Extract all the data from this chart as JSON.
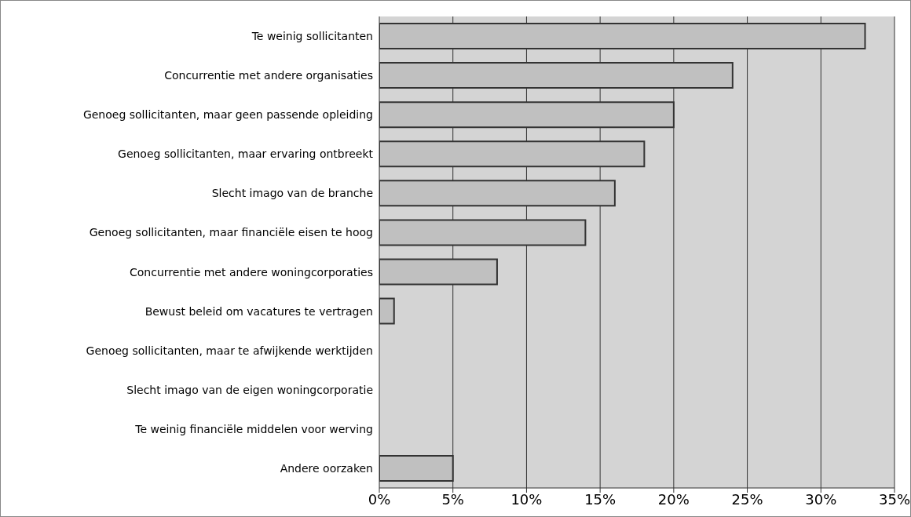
{
  "chart_data": {
    "type": "bar",
    "orientation": "horizontal",
    "categories": [
      "Te weinig sollicitanten",
      "Concurrentie met andere organisaties",
      "Genoeg sollicitanten, maar geen passende opleiding",
      "Genoeg sollicitanten, maar ervaring ontbreekt",
      "Slecht imago van de branche",
      "Genoeg sollicitanten, maar financiële eisen te hoog",
      "Concurrentie met andere woningcorporaties",
      "Bewust beleid om vacatures te vertragen",
      "Genoeg sollicitanten, maar te afwijkende werktijden",
      "Slecht imago van de eigen woningcorporatie",
      "Te weinig financiële middelen voor werving",
      "Andere oorzaken"
    ],
    "values": [
      33,
      24,
      20,
      18,
      16,
      14,
      8,
      1,
      0,
      0,
      0,
      5
    ],
    "color": "#c0c0c0",
    "xlim": [
      0,
      35
    ],
    "xticks": [
      {
        "value": 0,
        "label": "0%"
      },
      {
        "value": 5,
        "label": "5%"
      },
      {
        "value": 10,
        "label": "10%"
      },
      {
        "value": 15,
        "label": "15%"
      },
      {
        "value": 20,
        "label": "20%"
      },
      {
        "value": 25,
        "label": "25%"
      },
      {
        "value": 30,
        "label": "30%"
      },
      {
        "value": 35,
        "label": "35%"
      }
    ],
    "grid": "x"
  }
}
